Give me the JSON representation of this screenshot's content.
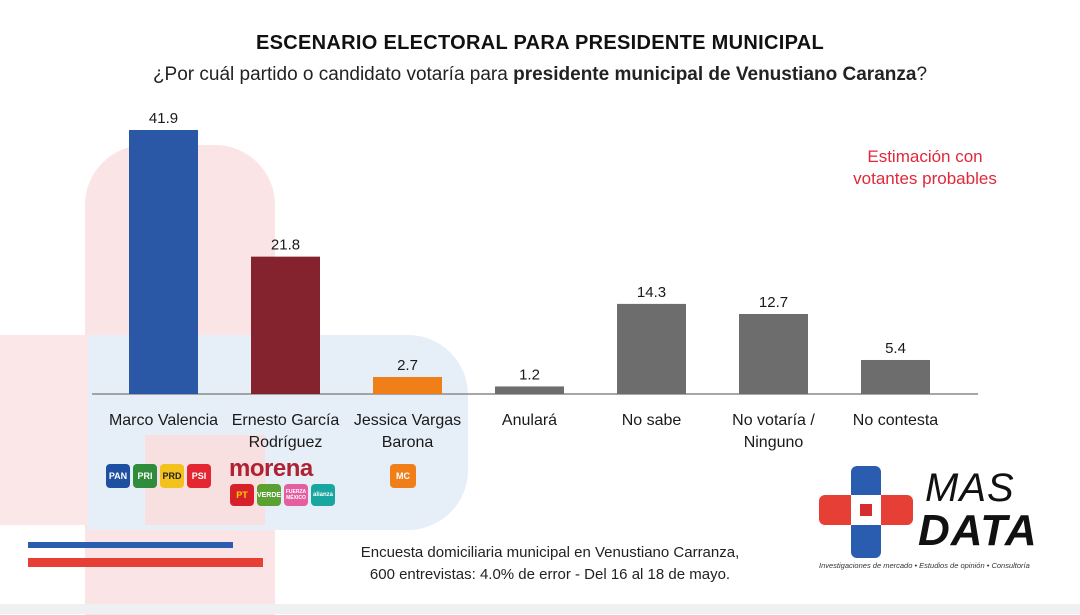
{
  "title": "ESCENARIO ELECTORAL PARA PRESIDENTE MUNICIPAL",
  "subtitle": {
    "prefix": "¿Por cuál partido o candidato votaría para ",
    "bold": "presidente municipal de Venustiano Caranza",
    "suffix": "?"
  },
  "estimation": {
    "line1": "Estimación con",
    "line2": "votantes probables"
  },
  "chart_data": {
    "type": "bar",
    "categories": [
      [
        "Marco Valencia"
      ],
      [
        "Ernesto García",
        "Rodríguez"
      ],
      [
        "Jessica Vargas",
        "Barona"
      ],
      [
        "Anulará"
      ],
      [
        "No sabe"
      ],
      [
        "No votaría /",
        "Ninguno"
      ],
      [
        "No contesta"
      ]
    ],
    "values": [
      41.9,
      21.8,
      2.7,
      1.2,
      14.3,
      12.7,
      5.4
    ],
    "value_labels": [
      "41.9",
      "21.8",
      "2.7",
      "1.2",
      "14.3",
      "12.7",
      "5.4"
    ],
    "colors": [
      "#2a58a6",
      "#84232d",
      "#f07f1a",
      "#6d6d6d",
      "#6d6d6d",
      "#6d6d6d",
      "#6d6d6d"
    ],
    "ylim": [
      0,
      41.9
    ],
    "grid": false,
    "legend": "none"
  },
  "party_logos": {
    "marco": [
      "PAN",
      "PRI",
      "PRD",
      "PSI"
    ],
    "ernesto_wordmark": "morena",
    "ernesto": [
      "PT",
      "VERDE",
      "FUERZA MÉXICO",
      "alianza"
    ],
    "jessica": [
      "MC"
    ]
  },
  "footnote": {
    "line1": "Encuesta domiciliaria municipal en Venustiano Carranza,",
    "line2": "600 entrevistas: 4.0% de error - Del 16 al 18 de mayo."
  },
  "brand": {
    "mas": "MAS",
    "data": "DATA",
    "tagline": "Investigaciones de mercado • Estudios de opinión • Consultoría"
  },
  "colors": {
    "blue": "#2a58a6",
    "maroon": "#84232d",
    "orange": "#f07f1a",
    "gray": "#6d6d6d",
    "red_text": "#e0283a"
  }
}
